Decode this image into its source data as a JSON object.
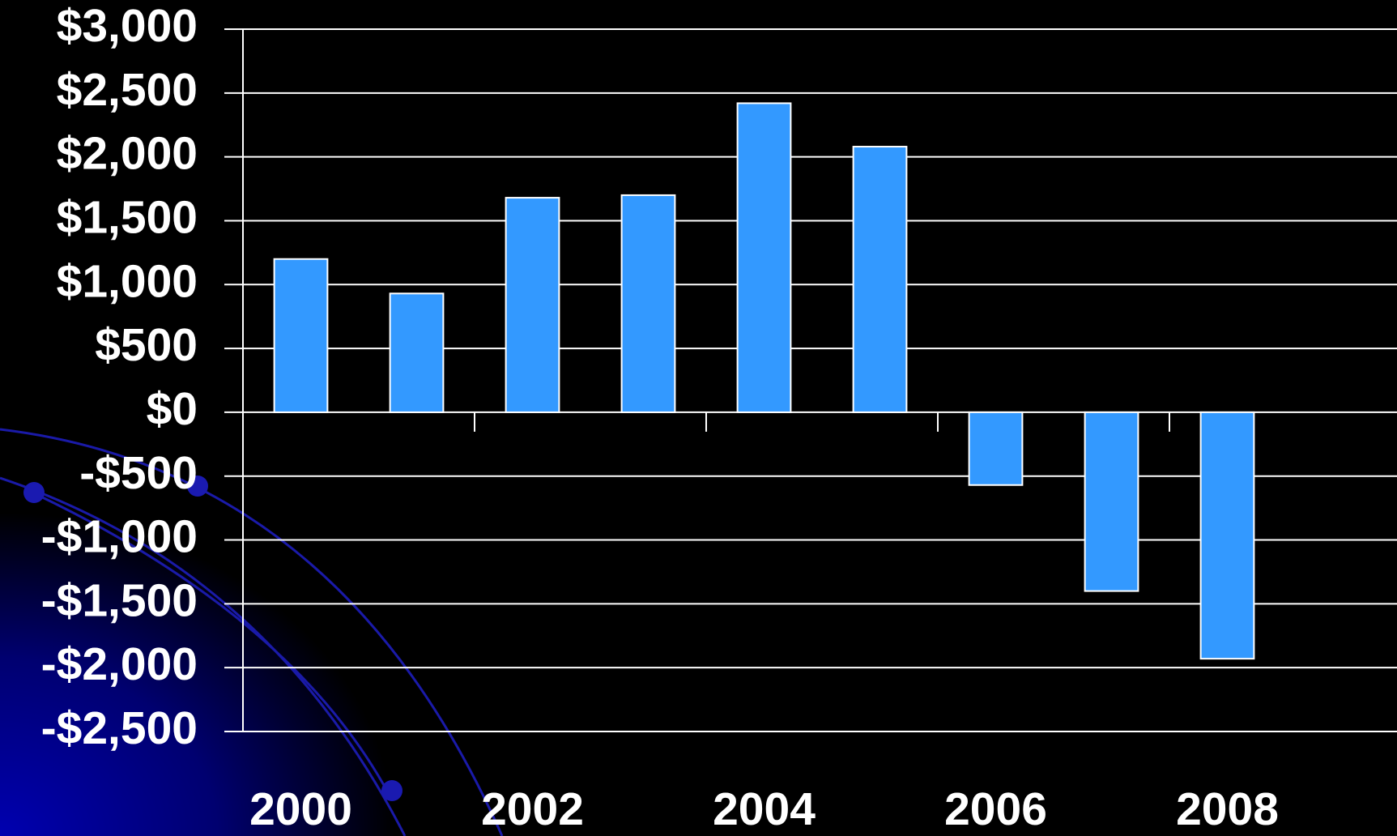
{
  "chart_data": {
    "type": "bar",
    "categories": [
      "2000",
      null,
      "2002",
      null,
      "2004",
      null,
      "2006",
      null,
      "2008"
    ],
    "values": [
      1200,
      930,
      1680,
      1700,
      2420,
      2080,
      -570,
      -1400,
      -1930
    ],
    "color": "#3399ff",
    "ylim": [
      -2500,
      3000
    ],
    "yticks": [
      {
        "value": -2500,
        "label": "-$2,500"
      },
      {
        "value": -2000,
        "label": "-$2,000"
      },
      {
        "value": -1500,
        "label": "-$1,500"
      },
      {
        "value": -1000,
        "label": "-$1,000"
      },
      {
        "value": -500,
        "label": "-$500"
      },
      {
        "value": 0,
        "label": "$0"
      },
      {
        "value": 500,
        "label": "$500"
      },
      {
        "value": 1000,
        "label": "$1,000"
      },
      {
        "value": 1500,
        "label": "$1,500"
      },
      {
        "value": 2000,
        "label": "$2,000"
      },
      {
        "value": 2500,
        "label": "$2,500"
      },
      {
        "value": 3000,
        "label": "$3,000"
      }
    ],
    "grid": true
  }
}
